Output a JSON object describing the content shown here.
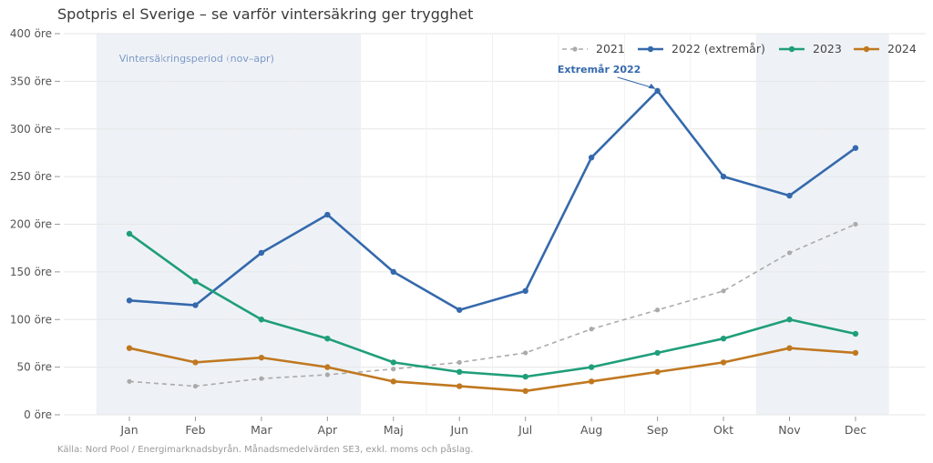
{
  "chart_data": {
    "type": "line",
    "title": "Spotpris el Sverige – se varför vintersäkring ger trygghet",
    "xlabel": "",
    "ylabel": "",
    "categories": [
      "Jan",
      "Feb",
      "Mar",
      "Apr",
      "Maj",
      "Jun",
      "Jul",
      "Aug",
      "Sep",
      "Okt",
      "Nov",
      "Dec"
    ],
    "ylim": [
      0,
      400
    ],
    "yticks": [
      0,
      50,
      100,
      150,
      200,
      250,
      300,
      350,
      400
    ],
    "ytick_labels": [
      "0 öre",
      "50 öre",
      "100 öre",
      "150 öre",
      "200 öre",
      "250 öre",
      "300 öre",
      "350 öre",
      "400 öre"
    ],
    "grid": true,
    "legend_position": "top-right",
    "series": [
      {
        "name": "2021",
        "values": [
          35,
          30,
          38,
          42,
          48,
          55,
          65,
          90,
          110,
          130,
          170,
          200
        ],
        "color": "#aaaaaa",
        "dashed": true
      },
      {
        "name": "2022 (extremår)",
        "values": [
          120,
          115,
          170,
          210,
          150,
          110,
          130,
          270,
          340,
          250,
          230,
          280
        ],
        "color": "#3569ac",
        "dashed": false
      },
      {
        "name": "2023",
        "values": [
          190,
          140,
          100,
          80,
          55,
          45,
          40,
          50,
          65,
          80,
          100,
          85
        ],
        "color": "#1f9e7a",
        "dashed": false
      },
      {
        "name": "2024",
        "values": [
          70,
          55,
          60,
          50,
          35,
          30,
          25,
          35,
          45,
          55,
          70,
          65
        ],
        "color": "#c07820",
        "dashed": false
      }
    ],
    "shaded_periods": [
      {
        "label": "Vintersäkringsperiod (nov–apr)",
        "from": "Jan",
        "to": "Apr"
      },
      {
        "label": "",
        "from": "Nov",
        "to": "Dec"
      }
    ],
    "annotations": [
      {
        "text": "Extremår 2022",
        "x": "Sep",
        "y": 340,
        "color": "#3569ac"
      }
    ],
    "source": "Källa: Nord Pool / Energimarknadsbyrån. Månadsmedelvärden SE3, exkl. moms och påslag."
  }
}
